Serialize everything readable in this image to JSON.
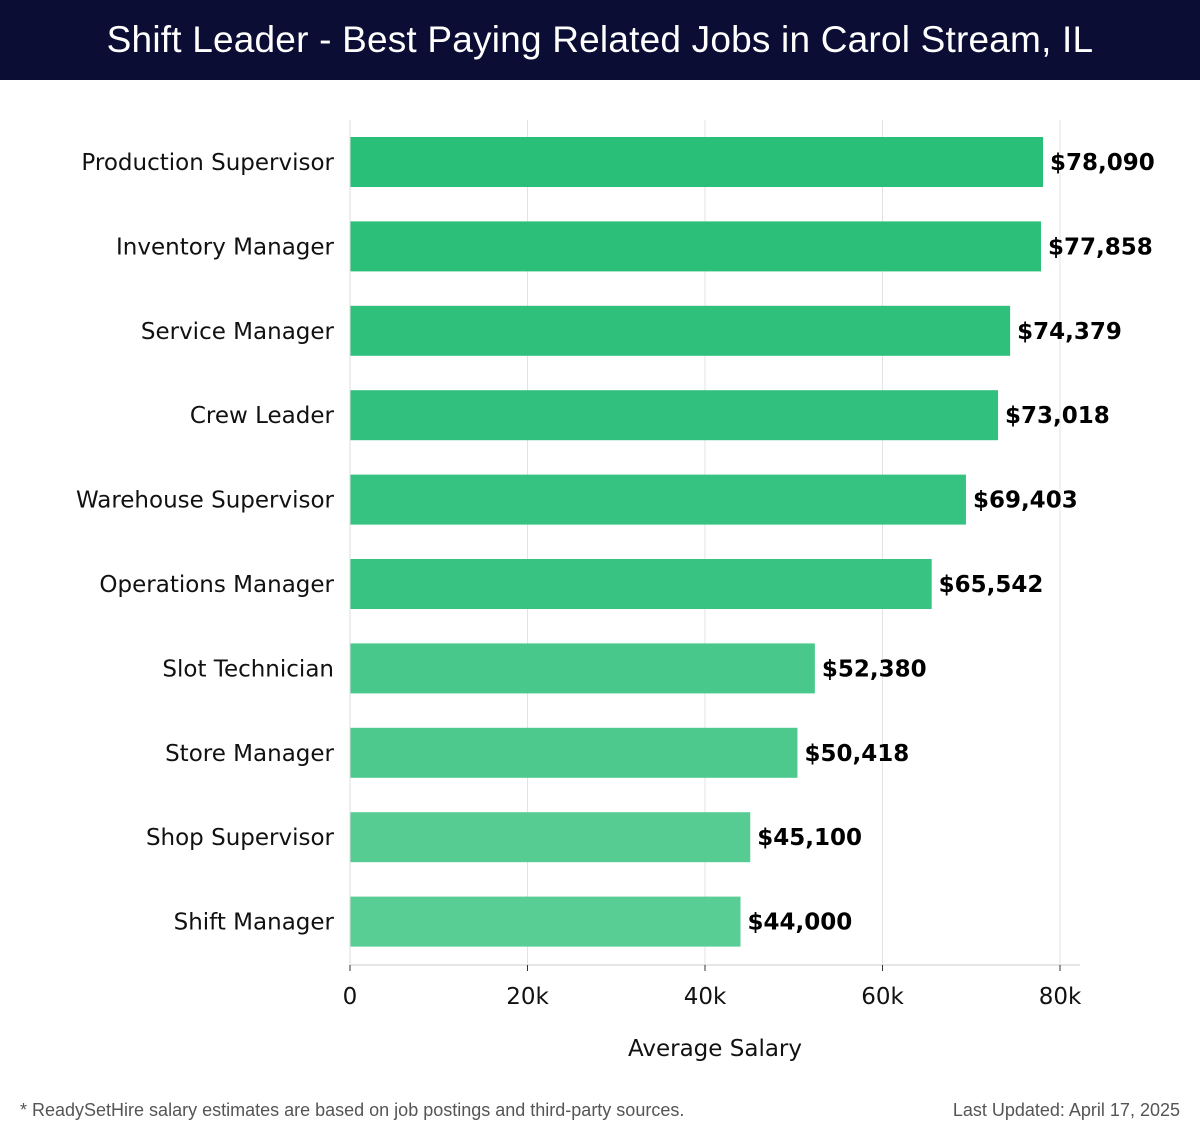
{
  "header": {
    "title": "Shift Leader - Best Paying Related Jobs in Carol Stream, IL"
  },
  "chart_data": {
    "type": "bar",
    "orientation": "horizontal",
    "title": "Shift Leader - Best Paying Related Jobs in Carol Stream, IL",
    "xlabel": "Average Salary",
    "ylabel": "",
    "xlim": [
      0,
      80000
    ],
    "xticks": [
      0,
      20000,
      40000,
      60000,
      80000
    ],
    "xtick_labels": [
      "0",
      "20k",
      "40k",
      "60k",
      "80k"
    ],
    "grid": true,
    "categories": [
      "Production Supervisor",
      "Inventory Manager",
      "Service Manager",
      "Crew Leader",
      "Warehouse Supervisor",
      "Operations Manager",
      "Slot Technician",
      "Store Manager",
      "Shop Supervisor",
      "Shift Manager"
    ],
    "values": [
      78090,
      77858,
      74379,
      73018,
      69403,
      65542,
      52380,
      50418,
      45100,
      44000
    ],
    "value_labels": [
      "$78,090",
      "$77,858",
      "$74,379",
      "$73,018",
      "$69,403",
      "$65,542",
      "$52,380",
      "$50,418",
      "$45,100",
      "$44,000"
    ],
    "colors": [
      "#2abf79",
      "#2cbf7a",
      "#2fc07c",
      "#31c07d",
      "#36c280",
      "#39c382",
      "#48c88b",
      "#4ec98e",
      "#56cc93",
      "#58cd94"
    ]
  },
  "footer": {
    "note": "* ReadySetHire salary estimates are based on job postings and third-party sources.",
    "updated": "Last Updated: April 17, 2025"
  }
}
